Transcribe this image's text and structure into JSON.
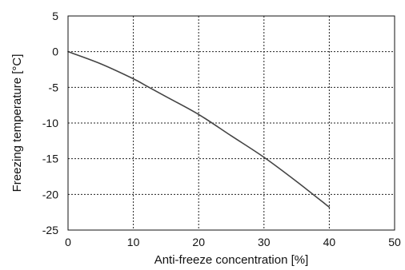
{
  "chart_data": {
    "type": "line",
    "title": "",
    "xlabel": "Anti-freeze concentration [%]",
    "ylabel": "Freezing temperature [°C]",
    "xlim": [
      0,
      50
    ],
    "ylim": [
      -25,
      5
    ],
    "x_ticks": [
      0,
      10,
      20,
      30,
      40,
      50
    ],
    "y_ticks": [
      5,
      0,
      -5,
      -10,
      -15,
      -20,
      -25
    ],
    "x_tick_labels": [
      "0",
      "10",
      "20",
      "30",
      "40",
      "50"
    ],
    "y_tick_labels": [
      "5",
      "0",
      "-5",
      "-10",
      "-15",
      "-20",
      "-25"
    ],
    "grid": true,
    "grid_style": "dotted",
    "series": [
      {
        "color": "#444444",
        "x": [
          0,
          5,
          10,
          12,
          15,
          20,
          25,
          30,
          35,
          40
        ],
        "y": [
          0,
          -1.7,
          -3.8,
          -4.8,
          -6.3,
          -8.8,
          -11.8,
          -14.8,
          -18.2,
          -21.8
        ]
      }
    ]
  }
}
